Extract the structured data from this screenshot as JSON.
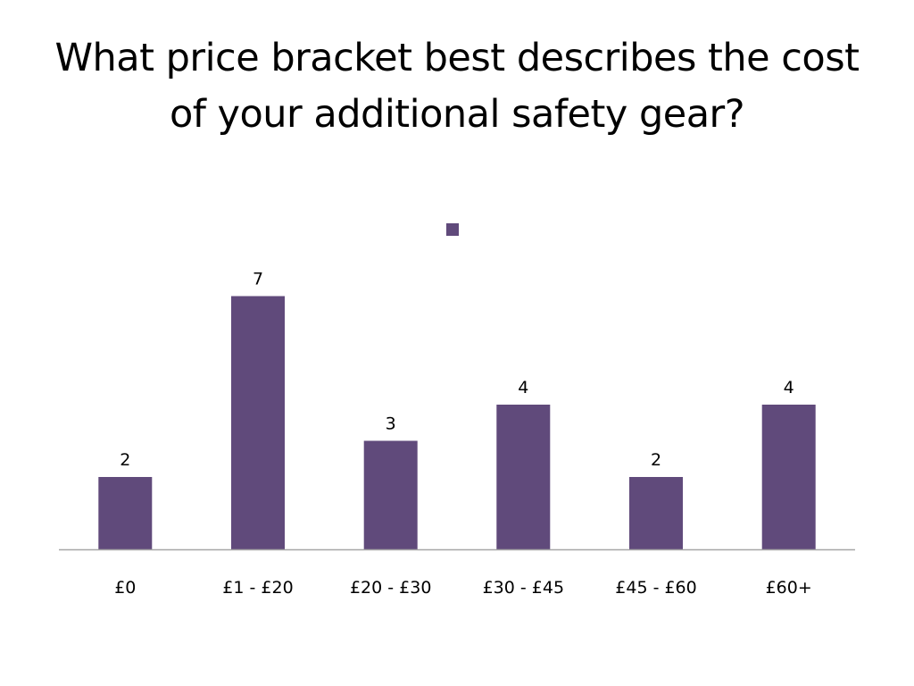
{
  "title": "What price bracket best describes the cost of your additional safety gear?",
  "colors": {
    "bar": "#604a7b",
    "axis": "#a6a6a6",
    "text": "#000000",
    "background": "#ffffff"
  },
  "chart_data": {
    "type": "bar",
    "title": "What price bracket best describes the cost of your additional safety gear?",
    "categories": [
      "£0",
      "£1 - £20",
      "£20 - £30",
      "£30 - £45",
      "£45 - £60",
      "£60+"
    ],
    "values": [
      2,
      7,
      3,
      4,
      2,
      4
    ],
    "data_labels": [
      "2",
      "7",
      "3",
      "4",
      "2",
      "4"
    ],
    "xlabel": "",
    "ylabel": "",
    "ylim": [
      0,
      7
    ],
    "grid": false,
    "y_axis_visible": false,
    "legend": {
      "position": "top-center",
      "entries": [
        ""
      ]
    }
  }
}
